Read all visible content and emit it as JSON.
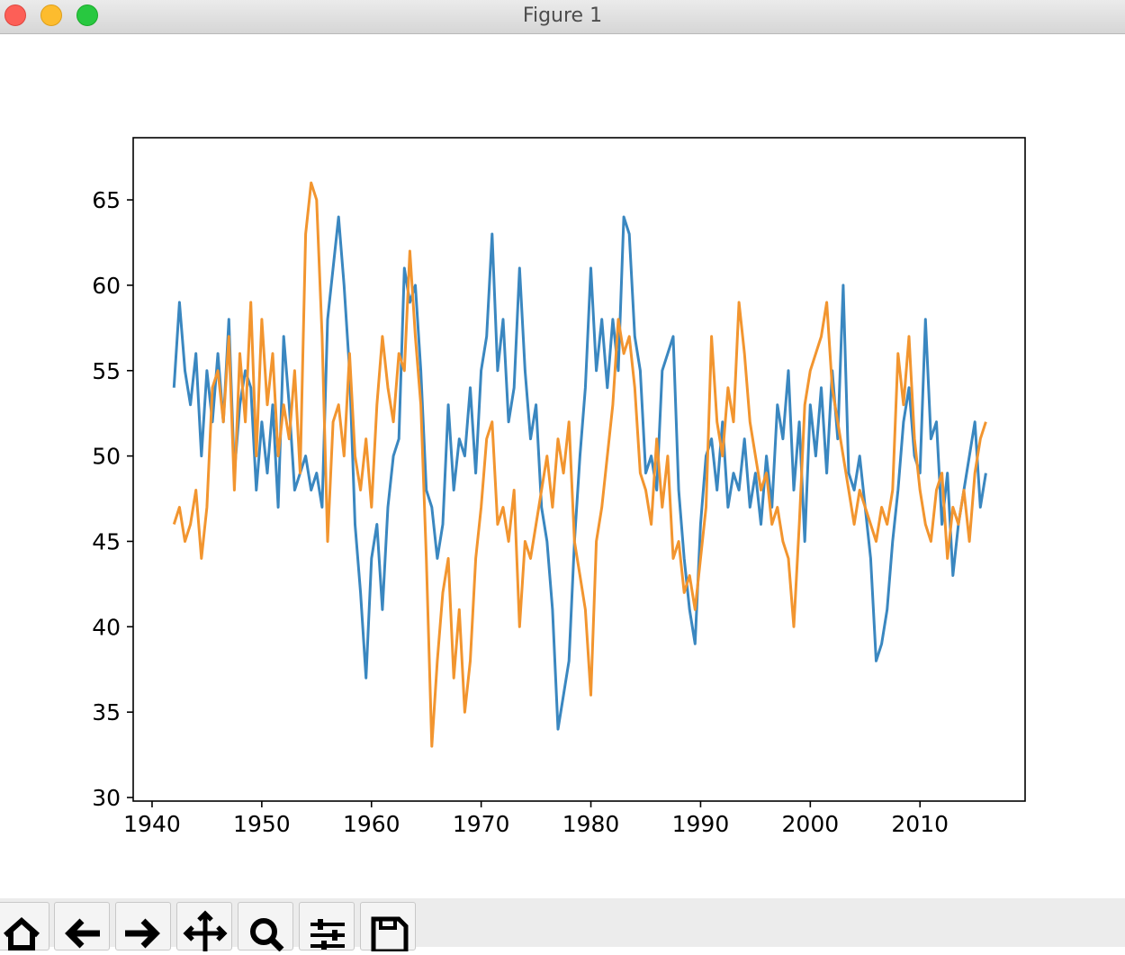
{
  "window_title": "Figure 1",
  "chart_data": {
    "type": "line",
    "x": [
      1942,
      1942.5,
      1943,
      1943.5,
      1944,
      1944.5,
      1945,
      1945.5,
      1946,
      1946.5,
      1947,
      1947.5,
      1948,
      1948.5,
      1949,
      1949.5,
      1950,
      1950.5,
      1951,
      1951.5,
      1952,
      1952.5,
      1953,
      1953.5,
      1954,
      1954.5,
      1955,
      1955.5,
      1956,
      1956.5,
      1957,
      1957.5,
      1958,
      1958.5,
      1959,
      1959.5,
      1960,
      1960.5,
      1961,
      1961.5,
      1962,
      1962.5,
      1963,
      1963.5,
      1964,
      1964.5,
      1965,
      1965.5,
      1966,
      1966.5,
      1967,
      1967.5,
      1968,
      1968.5,
      1969,
      1969.5,
      1970,
      1970.5,
      1971,
      1971.5,
      1972,
      1972.5,
      1973,
      1973.5,
      1974,
      1974.5,
      1975,
      1975.5,
      1976,
      1976.5,
      1977,
      1977.5,
      1978,
      1978.5,
      1979,
      1979.5,
      1980,
      1980.5,
      1981,
      1981.5,
      1982,
      1982.5,
      1983,
      1983.5,
      1984,
      1984.5,
      1985,
      1985.5,
      1986,
      1986.5,
      1987,
      1987.5,
      1988,
      1988.5,
      1989,
      1989.5,
      1990,
      1990.5,
      1991,
      1991.5,
      1992,
      1992.5,
      1993,
      1993.5,
      1994,
      1994.5,
      1995,
      1995.5,
      1996,
      1996.5,
      1997,
      1997.5,
      1998,
      1998.5,
      1999,
      1999.5,
      2000,
      2000.5,
      2001,
      2001.5,
      2002,
      2002.5,
      2003,
      2003.5,
      2004,
      2004.5,
      2005,
      2005.5,
      2006,
      2006.5,
      2007,
      2007.5,
      2008,
      2008.5,
      2009,
      2009.5,
      2010,
      2010.5,
      2011,
      2011.5,
      2012,
      2012.5,
      2013,
      2013.5,
      2014,
      2014.5,
      2015,
      2015.5,
      2016
    ],
    "series": [
      {
        "color": "#3a87c0",
        "values": [
          54,
          59,
          55,
          53,
          56,
          50,
          55,
          52,
          56,
          52,
          58,
          49,
          53,
          55,
          54,
          48,
          52,
          49,
          53,
          47,
          57,
          53,
          48,
          49,
          50,
          48,
          49,
          47,
          58,
          61,
          64,
          60,
          55,
          46,
          42,
          37,
          44,
          46,
          41,
          47,
          50,
          51,
          61,
          59,
          60,
          55,
          48,
          47,
          44,
          46,
          53,
          48,
          51,
          50,
          54,
          49,
          55,
          57,
          63,
          55,
          58,
          52,
          54,
          61,
          55,
          51,
          53,
          47,
          45,
          41,
          34,
          36,
          38,
          45,
          50,
          54,
          61,
          55,
          58,
          54,
          58,
          55,
          64,
          63,
          57,
          55,
          49,
          50,
          48,
          55,
          56,
          57,
          48,
          44,
          41,
          39,
          46,
          50,
          51,
          48,
          52,
          47,
          49,
          48,
          51,
          47,
          49,
          46,
          50,
          47,
          53,
          51,
          55,
          48,
          52,
          45,
          53,
          50,
          54,
          49,
          55,
          51,
          60,
          49,
          48,
          50,
          47,
          44,
          38,
          39,
          41,
          45,
          48,
          52,
          54,
          50,
          49,
          58,
          51,
          52,
          46,
          49,
          43,
          46,
          48,
          50,
          52,
          47,
          49
        ]
      },
      {
        "color": "#f2952f",
        "values": [
          46,
          47,
          45,
          46,
          48,
          44,
          47,
          54,
          55,
          52,
          57,
          48,
          56,
          52,
          59,
          50,
          58,
          53,
          56,
          50,
          53,
          51,
          55,
          49,
          63,
          66,
          65,
          57,
          45,
          52,
          53,
          50,
          56,
          50,
          48,
          51,
          47,
          53,
          57,
          54,
          52,
          56,
          55,
          62,
          57,
          53,
          44,
          33,
          38,
          42,
          44,
          37,
          41,
          35,
          38,
          44,
          47,
          51,
          52,
          46,
          47,
          45,
          48,
          40,
          45,
          44,
          46,
          48,
          50,
          47,
          51,
          49,
          52,
          45,
          43,
          41,
          36,
          45,
          47,
          50,
          53,
          58,
          56,
          57,
          54,
          49,
          48,
          46,
          51,
          47,
          50,
          44,
          45,
          42,
          43,
          41,
          44,
          47,
          57,
          52,
          50,
          54,
          52,
          59,
          56,
          52,
          50,
          48,
          49,
          46,
          47,
          45,
          44,
          40,
          46,
          53,
          55,
          56,
          57,
          59,
          54,
          52,
          50,
          48,
          46,
          48,
          47,
          46,
          45,
          47,
          46,
          48,
          56,
          53,
          57,
          51,
          48,
          46,
          45,
          48,
          49,
          44,
          47,
          46,
          48,
          45,
          49,
          51,
          52
        ]
      }
    ],
    "xlim": [
      1938.28,
      2019.58
    ],
    "ylim": [
      29.79,
      68.64
    ],
    "xticks": [
      1940,
      1950,
      1960,
      1970,
      1980,
      1990,
      2000,
      2010
    ],
    "yticks": [
      30,
      35,
      40,
      45,
      50,
      55,
      60,
      65
    ]
  }
}
